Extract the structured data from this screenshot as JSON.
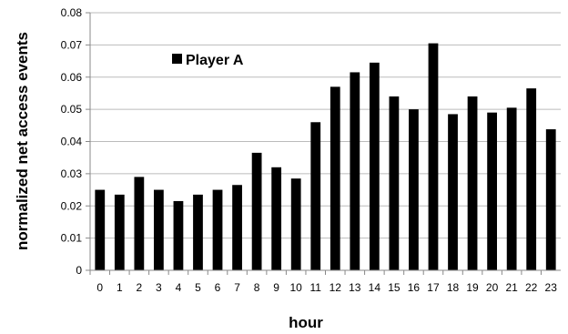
{
  "chart_data": {
    "type": "bar",
    "xlabel": "hour",
    "ylabel": "normalized net access events",
    "categories": [
      "0",
      "1",
      "2",
      "3",
      "4",
      "5",
      "6",
      "7",
      "8",
      "9",
      "10",
      "11",
      "12",
      "13",
      "14",
      "15",
      "16",
      "17",
      "18",
      "19",
      "20",
      "21",
      "22",
      "23"
    ],
    "series": [
      {
        "name": "Player A",
        "color": "#000000",
        "values": [
          0.025,
          0.0235,
          0.029,
          0.025,
          0.0215,
          0.0235,
          0.025,
          0.0265,
          0.0365,
          0.032,
          0.0285,
          0.046,
          0.057,
          0.0615,
          0.0645,
          0.054,
          0.05,
          0.0705,
          0.0485,
          0.054,
          0.049,
          0.0505,
          0.0565,
          0.0438
        ]
      }
    ],
    "ylim": [
      0,
      0.08
    ],
    "yticks": [
      "0",
      "0.01",
      "0.02",
      "0.03",
      "0.04",
      "0.05",
      "0.06",
      "0.07",
      "0.08"
    ],
    "grid": "horizontal",
    "legend_position": "top-left"
  }
}
